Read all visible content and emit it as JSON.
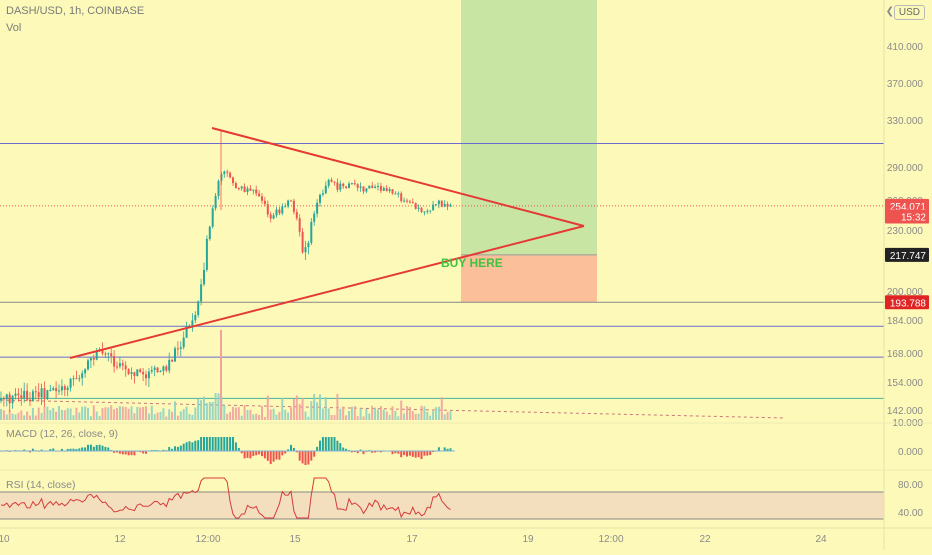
{
  "header": {
    "title": "DASH/USD, 1h, COINBASE",
    "vol_label": "Vol",
    "currency": "USD"
  },
  "colors": {
    "background": "#fdfab9",
    "up": "#26a69a",
    "down": "#ef5350",
    "trendline": "#e53935",
    "hline": "#6a6ad0",
    "profit_zone": "#c8e5a4",
    "loss_zone": "#fbc09a",
    "buy_text": "#3fc43f",
    "rsi_band": "#f3dfbd"
  },
  "chart_data": [
    {
      "type": "candlestick",
      "symbol": "DASH/USD",
      "interval": "1h",
      "exchange": "COINBASE",
      "ylim": [
        136,
        450
      ],
      "y_ticks": [
        "410.000",
        "370.000",
        "330.000",
        "290.000",
        "260.000",
        "230.000",
        "200.000",
        "184.000",
        "168.000",
        "154.000",
        "142.000"
      ],
      "x_ticks": [
        "10",
        "12",
        "12:00",
        "15",
        "17",
        "19",
        "12:00",
        "22",
        "24"
      ],
      "price_labels": [
        {
          "label": "254.071",
          "color": "#ef5350",
          "price": 254.071
        },
        {
          "label": "15:32",
          "color": "#ef5350",
          "price": 243.5
        },
        {
          "label": "217.747",
          "color": "#222222",
          "price": 217.747
        },
        {
          "label": "193.788",
          "color": "#e02424",
          "price": 193.788
        }
      ],
      "horizontal_lines": [
        310,
        193.788,
        181,
        166,
        147
      ],
      "current_price": 254.071,
      "trendlines": [
        {
          "name": "upper",
          "from": [
            "12 12:00",
            322
          ],
          "to": [
            "apex",
            234
          ]
        },
        {
          "name": "lower",
          "from": [
            "11",
            167
          ],
          "to": [
            "apex",
            234
          ]
        }
      ],
      "position": {
        "entry": 217.747,
        "stop": 193.788,
        "target": 450
      },
      "annotation": "BUY HERE",
      "path": [
        [
          0,
          146
        ],
        [
          30,
          148
        ],
        [
          60,
          150
        ],
        [
          75,
          156
        ],
        [
          95,
          166
        ],
        [
          105,
          168
        ],
        [
          125,
          160
        ],
        [
          145,
          158
        ],
        [
          165,
          160
        ],
        [
          180,
          172
        ],
        [
          195,
          188
        ],
        [
          205,
          215
        ],
        [
          213,
          250
        ],
        [
          219,
          278
        ],
        [
          224,
          286
        ],
        [
          232,
          276
        ],
        [
          242,
          270
        ],
        [
          252,
          268
        ],
        [
          262,
          258
        ],
        [
          270,
          244
        ],
        [
          280,
          250
        ],
        [
          290,
          262
        ],
        [
          297,
          240
        ],
        [
          302,
          218
        ],
        [
          308,
          222
        ],
        [
          318,
          262
        ],
        [
          328,
          276
        ],
        [
          338,
          272
        ],
        [
          350,
          274
        ],
        [
          362,
          270
        ],
        [
          378,
          272
        ],
        [
          392,
          266
        ],
        [
          405,
          260
        ],
        [
          418,
          252
        ],
        [
          428,
          247
        ],
        [
          436,
          258
        ],
        [
          445,
          255
        ],
        [
          452,
          254
        ]
      ]
    },
    {
      "type": "bar",
      "name": "Volume"
    },
    {
      "type": "histogram",
      "title": "MACD (12, 26, close, 9)",
      "y_ticks": [
        "10.000",
        "0.000"
      ]
    },
    {
      "type": "line",
      "title": "RSI (14, close)",
      "y_ticks": [
        "80.00",
        "40.00"
      ],
      "band": [
        40,
        80
      ]
    }
  ]
}
